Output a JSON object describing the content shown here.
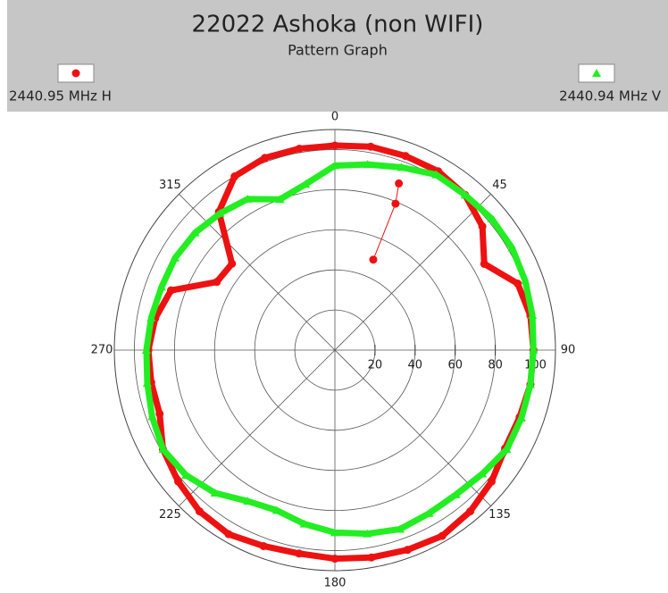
{
  "chart_data": {
    "type": "polar",
    "title": "22022 Ashoka (non WIFI)",
    "subtitle": "Pattern Graph",
    "theta": [
      0,
      10,
      20,
      30,
      40,
      50,
      60,
      70,
      80,
      90,
      100,
      110,
      120,
      130,
      140,
      150,
      160,
      170,
      180,
      190,
      200,
      210,
      220,
      230,
      240,
      250,
      260,
      270,
      280,
      290,
      300,
      310,
      320,
      330,
      340,
      350
    ],
    "series": [
      {
        "name": "2440.95 MHz H",
        "color": "#ee1111",
        "marker": "circle",
        "r": [
          102,
          103,
          103,
          103,
          101,
          96,
          86,
          97,
          99,
          99,
          99,
          98,
          98,
          102,
          105,
          107,
          106,
          105,
          104,
          103,
          104,
          106,
          105,
          102,
          99,
          93,
          93,
          93,
          91,
          87,
          68,
          67,
          90,
          100,
          102,
          102
        ],
        "extra_theta": [
          21,
          22.5,
          23
        ],
        "extra_r": [
          89,
          79,
          49
        ]
      },
      {
        "name": "2440.94 MHz V",
        "color": "#22ee22",
        "marker": "triangle",
        "r": [
          92,
          94,
          97,
          101,
          101,
          102,
          102,
          101,
          100,
          99,
          99,
          99,
          99,
          96,
          94,
          94,
          95,
          93,
          91,
          88,
          85,
          87,
          93,
          97,
          99,
          97,
          95,
          94,
          93,
          92,
          92,
          91,
          89,
          87,
          80,
          84
        ]
      }
    ],
    "rlim": [
      0,
      110
    ],
    "rticks": [
      20,
      40,
      60,
      80,
      100
    ],
    "thetaticks": [
      0,
      45,
      90,
      135,
      180,
      225,
      270,
      315
    ],
    "legend": "top"
  }
}
